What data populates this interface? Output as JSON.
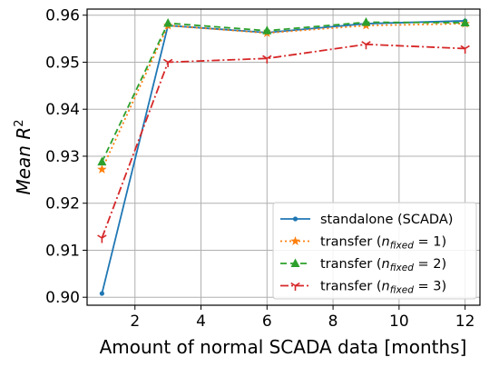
{
  "chart_data": {
    "type": "line",
    "xlabel": "Amount of normal SCADA data [months]",
    "ylabel": "Mean R",
    "ylabel_sup": "2",
    "xlim": [
      0.55,
      12.45
    ],
    "ylim": [
      0.8983,
      0.9613
    ],
    "xticks": [
      2,
      4,
      6,
      8,
      10,
      12
    ],
    "yticks": [
      0.9,
      0.91,
      0.92,
      0.93,
      0.94,
      0.95,
      0.96
    ],
    "xtick_labels": [
      "2",
      "4",
      "6",
      "8",
      "10",
      "12"
    ],
    "ytick_labels": [
      "0.90",
      "0.91",
      "0.92",
      "0.93",
      "0.94",
      "0.95",
      "0.96"
    ],
    "grid": true,
    "legend_position": "lower-right",
    "x": [
      1,
      3,
      6,
      9,
      12
    ],
    "series": [
      {
        "legend_main": "standalone (SCADA)",
        "legend_sub": "",
        "legend_tail": "",
        "color": "#1f77b4",
        "dash": "",
        "marker": "dot",
        "values": [
          0.9008,
          0.9578,
          0.9563,
          0.9582,
          0.9588
        ]
      },
      {
        "legend_main": "transfer (",
        "legend_sub": "fixed",
        "legend_tail": " = 1)",
        "color": "#ff7f0e",
        "dash": "2,3",
        "marker": "star",
        "values": [
          0.9272,
          0.9578,
          0.9562,
          0.9578,
          0.9582
        ]
      },
      {
        "legend_main": "transfer (",
        "legend_sub": "fixed",
        "legend_tail": " = 2)",
        "color": "#2ca02c",
        "dash": "7,4",
        "marker": "triangle",
        "values": [
          0.9288,
          0.9583,
          0.9567,
          0.9585,
          0.9584
        ]
      },
      {
        "legend_main": "transfer (",
        "legend_sub": "fixed",
        "legend_tail": " = 3)",
        "color": "#d62728",
        "dash": "9,3,2,3",
        "marker": "tri-down",
        "values": [
          0.9126,
          0.95,
          0.9508,
          0.9538,
          0.9529
        ]
      }
    ]
  }
}
